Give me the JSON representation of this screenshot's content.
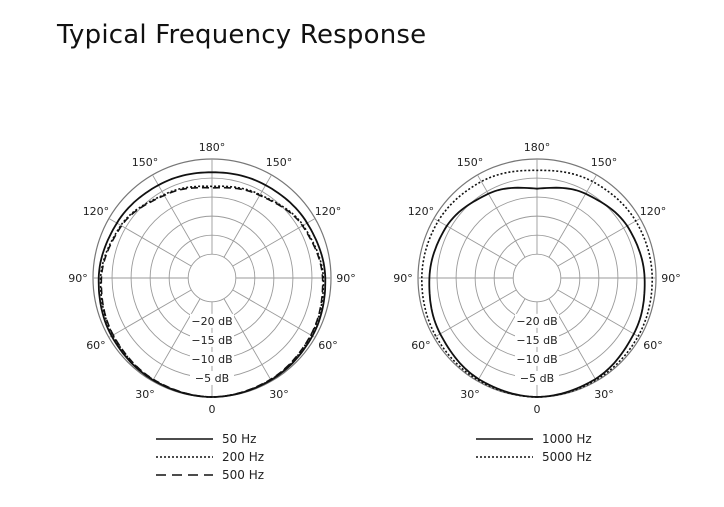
{
  "page": {
    "title": "Typical Frequency Response"
  },
  "chart_data": [
    {
      "type": "polar",
      "angle_tick_labels": [
        "0",
        "30°",
        "60°",
        "90°",
        "120°",
        "150°",
        "180°",
        "150°",
        "120°",
        "90°",
        "60°",
        "30°"
      ],
      "radial_tick_labels": [
        "−20 dB",
        "−15 dB",
        "−10 dB",
        "−5 dB"
      ],
      "radial_range_db": [
        -25,
        0
      ],
      "grid": true,
      "legend_position": "bottom",
      "series": [
        {
          "name": "50 Hz",
          "line_style": "solid",
          "angles": [
            0,
            30,
            60,
            90,
            120,
            150,
            180
          ],
          "values_db": [
            0,
            -0.3,
            -0.8,
            -1.5,
            -2.4,
            -3.1,
            -3.5
          ]
        },
        {
          "name": "200 Hz",
          "line_style": "dotted",
          "angles": [
            0,
            30,
            60,
            90,
            120,
            150,
            180
          ],
          "values_db": [
            0,
            -0.4,
            -1.2,
            -2.0,
            -3.6,
            -6.0,
            -7.2
          ]
        },
        {
          "name": "500 Hz",
          "line_style": "dashed",
          "angles": [
            0,
            30,
            60,
            90,
            120,
            150,
            180
          ],
          "values_db": [
            0,
            -0.5,
            -1.3,
            -2.2,
            -3.8,
            -6.2,
            -7.6
          ]
        }
      ]
    },
    {
      "type": "polar",
      "angle_tick_labels": [
        "0",
        "30°",
        "60°",
        "90°",
        "120°",
        "150°",
        "180°",
        "150°",
        "120°",
        "90°",
        "60°",
        "30°"
      ],
      "radial_tick_labels": [
        "−20 dB",
        "−15 dB",
        "−10 dB",
        "−5 dB"
      ],
      "radial_range_db": [
        -25,
        0
      ],
      "grid": true,
      "legend_position": "bottom",
      "series": [
        {
          "name": "1000 Hz",
          "line_style": "solid",
          "angles": [
            0,
            30,
            60,
            90,
            120,
            150,
            180
          ],
          "values_db": [
            0,
            -0.6,
            -1.9,
            -3.0,
            -3.9,
            -5.7,
            -7.8
          ]
        },
        {
          "name": "5000 Hz",
          "line_style": "dotted",
          "angles": [
            0,
            30,
            60,
            90,
            120,
            150,
            180
          ],
          "values_db": [
            0,
            -0.3,
            -0.6,
            -1.0,
            -1.3,
            -2.0,
            -3.0
          ]
        }
      ]
    }
  ]
}
